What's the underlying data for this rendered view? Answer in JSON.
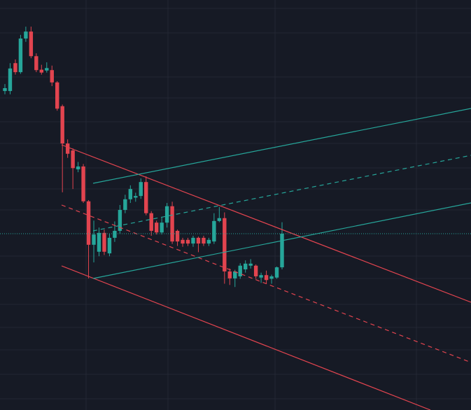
{
  "chart_data": {
    "type": "candlestick",
    "up_color": "#26a69a",
    "down_color": "#e2444f",
    "ylim": [
      0,
      100
    ],
    "open": [
      77.8,
      77.8,
      84.6,
      82.4,
      90.6,
      92.3,
      86.3,
      83.0,
      82.8,
      82.9,
      79.9,
      74.1,
      65.0,
      63.3,
      58.7,
      59.4,
      50.9,
      40.3,
      38.6,
      43.2,
      38.2,
      42.0,
      43.7,
      48.8,
      51.4,
      51.8,
      52.2,
      55.6,
      48.0,
      45.7,
      43.3,
      45.7,
      49.7,
      43.7,
      41.5,
      41.5,
      40.6,
      42.0,
      42.0,
      40.6,
      41.1,
      46.1,
      46.8,
      33.8,
      32.1,
      32.6,
      34.3,
      35.2,
      35.2,
      32.3,
      32.9,
      32.0,
      32.3,
      34.8
    ],
    "high": [
      79.5,
      84.6,
      85.5,
      91.5,
      93.5,
      93.5,
      87.0,
      84.2,
      84.8,
      84.0,
      80.2,
      74.5,
      66.0,
      63.8,
      60.5,
      60.0,
      51.2,
      46.2,
      44.5,
      44.0,
      43.0,
      46.0,
      50.0,
      52.5,
      54.8,
      53.0,
      56.5,
      57.0,
      48.5,
      46.2,
      47.0,
      50.5,
      50.8,
      44.0,
      42.0,
      42.0,
      42.5,
      42.3,
      42.5,
      42.0,
      48.0,
      49.5,
      48.2,
      34.5,
      34.2,
      35.8,
      36.5,
      36.8,
      35.5,
      33.5,
      34.0,
      33.0,
      35.0,
      45.8
    ],
    "low": [
      77.0,
      77.0,
      81.8,
      82.0,
      89.8,
      85.8,
      82.4,
      81.8,
      82.3,
      79.0,
      73.0,
      53.1,
      61.5,
      53.9,
      58.0,
      50.5,
      32.1,
      36.0,
      37.5,
      37.8,
      37.5,
      41.0,
      43.0,
      48.0,
      50.5,
      50.8,
      51.5,
      47.5,
      42.5,
      42.8,
      42.8,
      44.5,
      40.5,
      40.0,
      39.8,
      40.0,
      39.8,
      38.5,
      40.0,
      40.0,
      40.5,
      45.8,
      30.8,
      30.5,
      30.0,
      32.0,
      33.5,
      34.5,
      32.0,
      31.0,
      30.8,
      30.8,
      32.0,
      34.3
    ],
    "close": [
      78.5,
      83.3,
      82.4,
      90.6,
      92.3,
      86.3,
      82.9,
      82.3,
      83.4,
      79.9,
      73.5,
      65.0,
      62.5,
      59.0,
      59.4,
      50.9,
      40.3,
      42.8,
      43.2,
      38.6,
      42.0,
      43.7,
      48.8,
      51.4,
      53.9,
      52.2,
      55.6,
      48.0,
      43.7,
      43.3,
      45.7,
      49.7,
      41.1,
      41.1,
      40.6,
      40.6,
      42.0,
      40.6,
      40.6,
      41.5,
      46.1,
      46.8,
      33.8,
      32.1,
      33.8,
      35.2,
      35.7,
      35.7,
      32.6,
      32.9,
      31.7,
      32.6,
      34.8,
      43.0
    ]
  }
}
